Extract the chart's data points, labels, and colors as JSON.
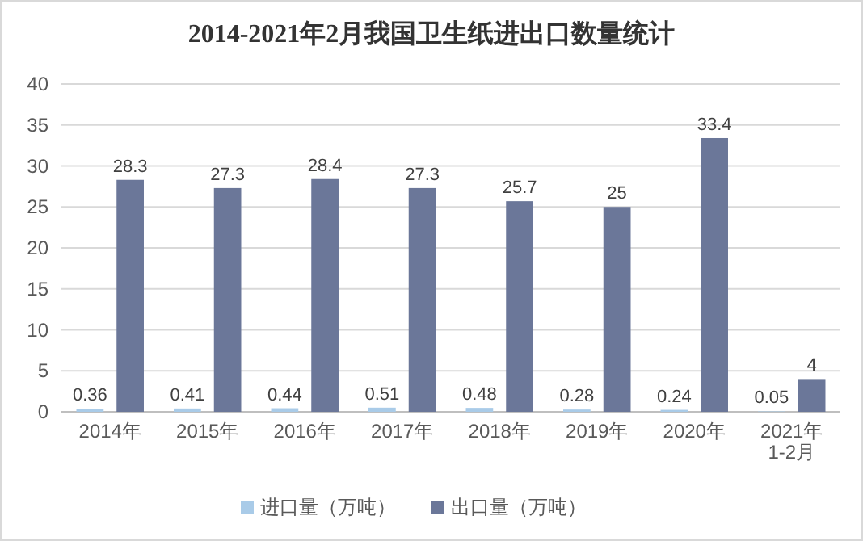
{
  "chart_data": {
    "type": "bar",
    "title": "2014-2021年2月我国卫生纸进出口数量统计",
    "categories": [
      "2014年",
      "2015年",
      "2016年",
      "2017年",
      "2018年",
      "2019年",
      "2020年",
      "2021年\n1-2月"
    ],
    "series": [
      {
        "name": "进口量（万吨）",
        "color": "#a9cbe8",
        "values": [
          0.36,
          0.41,
          0.44,
          0.51,
          0.48,
          0.28,
          0.24,
          0.05
        ]
      },
      {
        "name": "出口量（万吨）",
        "color": "#6b7799",
        "values": [
          28.3,
          27.3,
          28.4,
          27.3,
          25.7,
          25,
          33.4,
          4
        ]
      }
    ],
    "ylim": [
      0,
      40
    ],
    "yticks": [
      0,
      5,
      10,
      15,
      20,
      25,
      30,
      35,
      40
    ],
    "grid": "y",
    "legend": "bottom",
    "data_labels": true
  }
}
